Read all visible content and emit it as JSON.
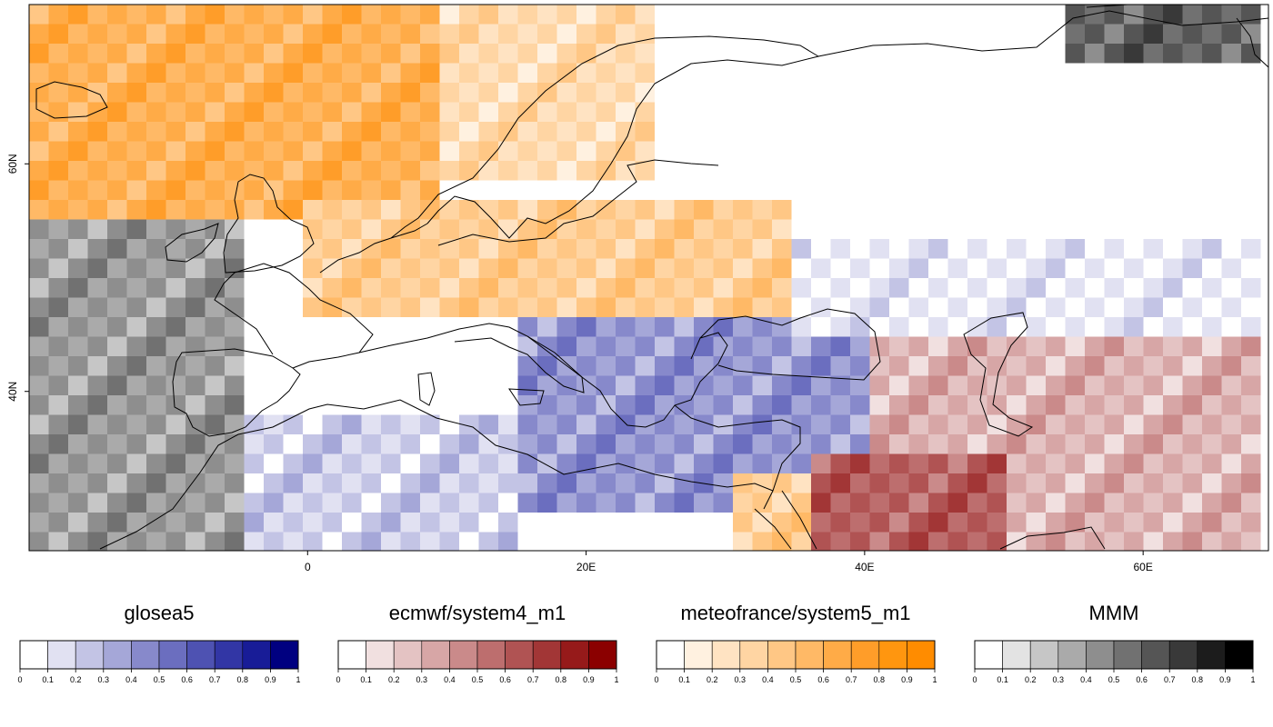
{
  "map": {
    "lon_range": [
      -20,
      69
    ],
    "lat_range": [
      26,
      74
    ],
    "x_ticks": [
      {
        "lon": 0,
        "label": "0"
      },
      {
        "lon": 20,
        "label": "20E"
      },
      {
        "lon": 40,
        "label": "40E"
      },
      {
        "lon": 60,
        "label": "60E"
      }
    ],
    "y_ticks": [
      {
        "lat": 40,
        "label": "40N"
      },
      {
        "lat": 60,
        "label": "60N"
      }
    ],
    "region_tints": [
      {
        "lon": [
          -20,
          10
        ],
        "lat": [
          55,
          74
        ],
        "model": "meteofrance/system5_m1",
        "value": 0.6
      },
      {
        "lon": [
          10,
          25
        ],
        "lat": [
          58,
          74
        ],
        "model": "meteofrance/system5_m1",
        "value": 0.3
      },
      {
        "lon": [
          25,
          69
        ],
        "lat": [
          56,
          70
        ],
        "model": "none",
        "value": 0
      },
      {
        "lon": [
          0,
          35
        ],
        "lat": [
          47,
          56
        ],
        "model": "meteofrance/system5_m1",
        "value": 0.4
      },
      {
        "lon": [
          -20,
          -5
        ],
        "lat": [
          26,
          55
        ],
        "model": "MMM",
        "value": 0.4
      },
      {
        "lon": [
          -5,
          15
        ],
        "lat": [
          26,
          38
        ],
        "model": "glosea5",
        "value": 0.2
      },
      {
        "lon": [
          15,
          40
        ],
        "lat": [
          30,
          46
        ],
        "model": "glosea5",
        "value": 0.4
      },
      {
        "lon": [
          40,
          69
        ],
        "lat": [
          26,
          45
        ],
        "model": "ecmwf/system4_m1",
        "value": 0.3
      },
      {
        "lon": [
          35,
          69
        ],
        "lat": [
          45,
          53
        ],
        "model": "glosea5",
        "value": 0.1
      },
      {
        "lon": [
          30,
          36
        ],
        "lat": [
          26,
          33
        ],
        "model": "meteofrance/system5_m1",
        "value": 0.4
      },
      {
        "lon": [
          36,
          50
        ],
        "lat": [
          26,
          34
        ],
        "model": "ecmwf/system4_m1",
        "value": 0.6
      },
      {
        "lon": [
          55,
          69
        ],
        "lat": [
          68,
          74
        ],
        "model": "MMM",
        "value": 0.6
      }
    ]
  },
  "legends": [
    {
      "title": "glosea5",
      "colors": [
        "#ffffff",
        "#e1e1f2",
        "#c3c4e5",
        "#a5a7d8",
        "#8789cb",
        "#6b6ebf",
        "#4e52b2",
        "#3236a5",
        "#181c97",
        "#000080"
      ]
    },
    {
      "title": "ecmwf/system4_m1",
      "colors": [
        "#ffffff",
        "#f1e0e0",
        "#e4c3c3",
        "#d7a6a6",
        "#ca8a8a",
        "#bd6e6e",
        "#b05353",
        "#a23636",
        "#961a1a",
        "#8b0000"
      ]
    },
    {
      "title": "meteofrance/system5_m1",
      "colors": [
        "#ffffff",
        "#fff1e0",
        "#ffe3c2",
        "#ffd5a3",
        "#ffc785",
        "#ffb966",
        "#ffab47",
        "#ff9d29",
        "#ff960f",
        "#ff8c00"
      ]
    },
    {
      "title": "MMM",
      "colors": [
        "#ffffff",
        "#e3e3e3",
        "#c6c6c6",
        "#aaaaaa",
        "#8e8e8e",
        "#717171",
        "#555555",
        "#393939",
        "#1c1c1c",
        "#000000"
      ]
    }
  ],
  "legend_ticks": [
    "0",
    "0.1",
    "0.2",
    "0.3",
    "0.4",
    "0.5",
    "0.6",
    "0.7",
    "0.8",
    "0.9",
    "1"
  ]
}
